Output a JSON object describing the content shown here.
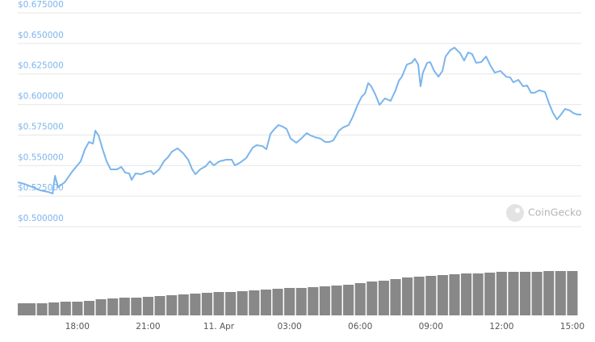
{
  "chart_data": {
    "type": "line",
    "watermark": "CoinGecko",
    "xlim": [
      -8.53,
      15.38
    ],
    "xticks": [
      {
        "value": -6,
        "label": "18:00"
      },
      {
        "value": -3,
        "label": "21:00"
      },
      {
        "value": 0,
        "label": "11. Apr"
      },
      {
        "value": 3,
        "label": "03:00"
      },
      {
        "value": 6,
        "label": "06:00"
      },
      {
        "value": 9,
        "label": "09:00"
      },
      {
        "value": 12,
        "label": "12:00"
      },
      {
        "value": 15,
        "label": "15:00"
      }
    ],
    "ylim": [
      0.5,
      0.675
    ],
    "yticks": [
      {
        "value": 0.5,
        "label": "$0.500000"
      },
      {
        "value": 0.525,
        "label": "$0.525000"
      },
      {
        "value": 0.55,
        "label": "$0.550000"
      },
      {
        "value": 0.575,
        "label": "$0.575000"
      },
      {
        "value": 0.6,
        "label": "$0.600000"
      },
      {
        "value": 0.625,
        "label": "$0.625000"
      },
      {
        "value": 0.65,
        "label": "$0.650000"
      },
      {
        "value": 0.675,
        "label": "$0.675000"
      }
    ],
    "grid": true,
    "series": [
      {
        "color": "#7cb5ec",
        "x": [
          -8.53,
          -8.25,
          -7.91,
          -7.57,
          -7.23,
          -7.05,
          -6.95,
          -6.82,
          -6.54,
          -6.2,
          -5.86,
          -5.68,
          -5.51,
          -5.34,
          -5.24,
          -5.1,
          -4.93,
          -4.76,
          -4.59,
          -4.32,
          -4.14,
          -3.97,
          -3.8,
          -3.7,
          -3.53,
          -3.29,
          -3.05,
          -2.88,
          -2.77,
          -2.53,
          -2.33,
          -2.16,
          -1.99,
          -1.75,
          -1.51,
          -1.3,
          -1.13,
          -0.99,
          -0.79,
          -0.55,
          -0.38,
          -0.21,
          0.03,
          0.31,
          0.55,
          0.68,
          0.89,
          1.16,
          1.44,
          1.61,
          1.85,
          2.02,
          2.19,
          2.36,
          2.53,
          2.71,
          2.88,
          3.05,
          3.29,
          3.49,
          3.73,
          3.9,
          4.08,
          4.32,
          4.52,
          4.69,
          4.86,
          5.1,
          5.27,
          5.51,
          5.68,
          5.89,
          6.06,
          6.2,
          6.34,
          6.47,
          6.64,
          6.82,
          7.05,
          7.29,
          7.5,
          7.64,
          7.77,
          7.98,
          8.18,
          8.32,
          8.46,
          8.56,
          8.66,
          8.84,
          8.97,
          9.14,
          9.32,
          9.49,
          9.62,
          9.83,
          10.0,
          10.24,
          10.41,
          10.58,
          10.75,
          10.92,
          11.13,
          11.34,
          11.54,
          11.71,
          11.95,
          12.19,
          12.36,
          12.5,
          12.71,
          12.91,
          13.08,
          13.25,
          13.39,
          13.6,
          13.84,
          14.01,
          14.18,
          14.35,
          14.52,
          14.69,
          14.9,
          15.03,
          15.21,
          15.38
        ],
        "values": [
          0.5363,
          0.535,
          0.5324,
          0.5297,
          0.5284,
          0.5271,
          0.5416,
          0.5324,
          0.5363,
          0.5456,
          0.5535,
          0.5634,
          0.5693,
          0.568,
          0.5786,
          0.5746,
          0.5634,
          0.5535,
          0.5469,
          0.5469,
          0.5489,
          0.5442,
          0.5436,
          0.5383,
          0.5436,
          0.5429,
          0.5449,
          0.5456,
          0.5429,
          0.5469,
          0.5535,
          0.5568,
          0.5614,
          0.5641,
          0.5601,
          0.5548,
          0.5469,
          0.5429,
          0.5469,
          0.5495,
          0.5535,
          0.5502,
          0.5535,
          0.5548,
          0.5548,
          0.5502,
          0.5522,
          0.5561,
          0.5647,
          0.5667,
          0.566,
          0.5634,
          0.5759,
          0.5799,
          0.5832,
          0.5819,
          0.5799,
          0.572,
          0.5687,
          0.572,
          0.5766,
          0.5746,
          0.5733,
          0.572,
          0.5693,
          0.5693,
          0.5707,
          0.5786,
          0.5812,
          0.5832,
          0.5898,
          0.5997,
          0.6063,
          0.609,
          0.6175,
          0.6149,
          0.6083,
          0.5997,
          0.605,
          0.603,
          0.6116,
          0.6195,
          0.6228,
          0.6327,
          0.6341,
          0.6374,
          0.6327,
          0.6149,
          0.6261,
          0.6341,
          0.6347,
          0.6275,
          0.6228,
          0.6275,
          0.6393,
          0.6446,
          0.6466,
          0.642,
          0.636,
          0.6426,
          0.6413,
          0.6341,
          0.6347,
          0.6393,
          0.6314,
          0.6261,
          0.6275,
          0.6228,
          0.6222,
          0.6182,
          0.6202,
          0.6149,
          0.6156,
          0.6096,
          0.6096,
          0.6116,
          0.6103,
          0.601,
          0.5931,
          0.5878,
          0.5918,
          0.5964,
          0.5951,
          0.5931,
          0.5918,
          0.5918
        ]
      }
    ],
    "volume": {
      "color": "#888888",
      "lim": [
        0,
        60
      ],
      "x": [
        -8.5,
        -8,
        -7.5,
        -7,
        -6.5,
        -6,
        -5.5,
        -5,
        -4.5,
        -4,
        -3.5,
        -3,
        -2.5,
        -2,
        -1.5,
        -1,
        -0.5,
        0,
        0.5,
        1,
        1.5,
        2,
        2.5,
        3,
        3.5,
        4,
        4.5,
        5,
        5.5,
        6,
        6.5,
        7,
        7.5,
        8,
        8.5,
        9,
        9.5,
        10,
        10.5,
        11,
        11.5,
        12,
        12.5,
        13,
        13.5,
        14,
        14.5,
        15
      ],
      "values": [
        15,
        15,
        15,
        16,
        17,
        17,
        18,
        20,
        21,
        22,
        22,
        23,
        24,
        25,
        26,
        27,
        28,
        29,
        29,
        30,
        31,
        32,
        33,
        34,
        34,
        35,
        36,
        37,
        38,
        40,
        42,
        43,
        45,
        47,
        48,
        49,
        50,
        51,
        52,
        52,
        53,
        54,
        54,
        54,
        54,
        55,
        55,
        55
      ]
    }
  }
}
